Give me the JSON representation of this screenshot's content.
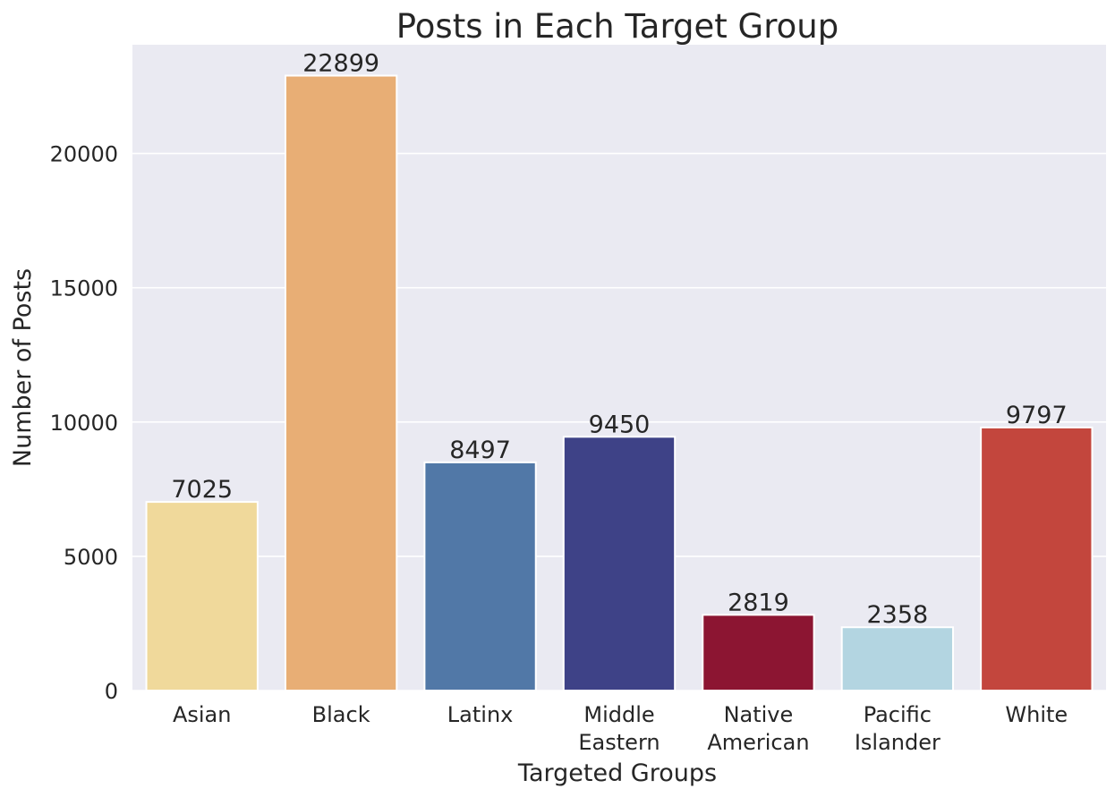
{
  "chart_data": {
    "type": "bar",
    "title": "Posts in Each Target Group",
    "xlabel": "Targeted Groups",
    "ylabel": "Number of Posts",
    "categories": [
      "Asian",
      "Black",
      "Latinx",
      "Middle Eastern",
      "Native American",
      "Pacific Islander",
      "White"
    ],
    "category_lines": [
      [
        "Asian"
      ],
      [
        "Black"
      ],
      [
        "Latinx"
      ],
      [
        "Middle",
        "Eastern"
      ],
      [
        "Native",
        "American"
      ],
      [
        "Pacific",
        "Islander"
      ],
      [
        "White"
      ]
    ],
    "values": [
      7025,
      22899,
      8497,
      9450,
      2819,
      2358,
      9797
    ],
    "colors": [
      "#f0d99b",
      "#e8ae75",
      "#5178a7",
      "#3e4287",
      "#8c1532",
      "#b3d5e1",
      "#c3463d"
    ],
    "ylim": [
      0,
      24050
    ],
    "yticks": [
      0,
      5000,
      10000,
      15000,
      20000
    ],
    "grid": true,
    "grid_axis": "y",
    "background": "#eaeaf2"
  }
}
